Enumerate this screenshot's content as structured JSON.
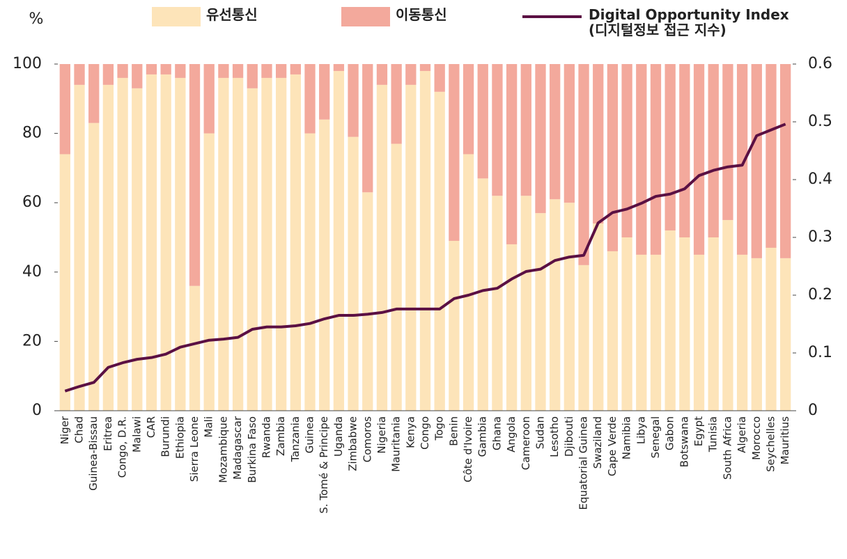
{
  "chart_data": {
    "type": "stacked_bar_line",
    "ylabel": "%",
    "categories": [
      "Niger",
      "Chad",
      "Guinea-Bissau",
      "Eritrea",
      "Congo, D.R.",
      "Malawi",
      "CAR",
      "Burundi",
      "Ethiopia",
      "Sierra Leone",
      "Mali",
      "Mozambique",
      "Madagascar",
      "Burkina Faso",
      "Rwanda",
      "Zambia",
      "Tanzania",
      "Guinea",
      "S. Tomé & Principe",
      "Uganda",
      "Zimbabwe",
      "Comoros",
      "Nigeria",
      "Mauritania",
      "Kenya",
      "Congo",
      "Togo",
      "Benin",
      "Côte d'Ivoire",
      "Gambia",
      "Ghana",
      "Angola",
      "Cameroon",
      "Sudan",
      "Lesotho",
      "Djibouti",
      "Equatorial Guinea",
      "Swaziland",
      "Cape Verde",
      "Namibia",
      "Libya",
      "Senegal",
      "Gabon",
      "Botswana",
      "Egypt",
      "Tunisia",
      "South Africa",
      "Algeria",
      "Morocco",
      "Seychelles",
      "Mauritius"
    ],
    "series": [
      {
        "name": "유선통신",
        "color": "#fde4b9",
        "values": [
          74,
          94,
          83,
          94,
          96,
          93,
          97,
          97,
          96,
          36,
          80,
          96,
          96,
          93,
          96,
          96,
          97,
          80,
          84,
          98,
          79,
          63,
          94,
          77,
          94,
          98,
          92,
          49,
          74,
          67,
          62,
          48,
          62,
          57,
          61,
          60,
          42,
          54,
          46,
          50,
          45,
          45,
          52,
          50,
          45,
          50,
          55,
          45,
          44,
          47,
          44
        ]
      },
      {
        "name": "이동통신",
        "color": "#f3a99c",
        "values": [
          26,
          6,
          17,
          6,
          4,
          7,
          3,
          3,
          4,
          64,
          20,
          4,
          4,
          7,
          4,
          4,
          3,
          20,
          16,
          2,
          21,
          37,
          6,
          23,
          6,
          2,
          8,
          51,
          26,
          33,
          38,
          52,
          38,
          43,
          39,
          40,
          58,
          46,
          54,
          50,
          55,
          55,
          48,
          50,
          55,
          50,
          45,
          55,
          56,
          53,
          56
        ]
      },
      {
        "name": "Digital Opportunity Index\n(디지털정보 접근 지수)",
        "color": "#5b1043",
        "axis": "y2",
        "values": [
          0.034,
          0.042,
          0.049,
          0.075,
          0.083,
          0.089,
          0.092,
          0.098,
          0.11,
          0.116,
          0.122,
          0.124,
          0.127,
          0.141,
          0.145,
          0.145,
          0.147,
          0.151,
          0.159,
          0.165,
          0.165,
          0.167,
          0.17,
          0.176,
          0.176,
          0.176,
          0.176,
          0.194,
          0.2,
          0.208,
          0.212,
          0.228,
          0.241,
          0.245,
          0.26,
          0.266,
          0.269,
          0.325,
          0.343,
          0.349,
          0.359,
          0.371,
          0.375,
          0.384,
          0.407,
          0.416,
          0.422,
          0.425,
          0.476,
          0.486,
          0.496
        ]
      }
    ],
    "ylim": [
      0,
      100
    ],
    "yticks": [
      0,
      20,
      40,
      60,
      80,
      100
    ],
    "y2lim": [
      0,
      0.6
    ],
    "y2ticks": [
      0,
      0.1,
      0.2,
      0.3,
      0.4,
      0.5,
      0.6
    ]
  }
}
